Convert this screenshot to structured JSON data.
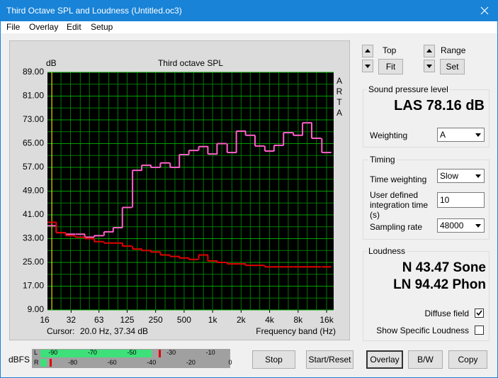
{
  "window": {
    "title": "Third Octave SPL and Loudness (Untitled.oc3)",
    "menu": [
      "File",
      "Overlay",
      "Edit",
      "Setup"
    ]
  },
  "chart_data": {
    "type": "line",
    "title": "Third octave SPL",
    "y_label": "dB",
    "x_label": "Frequency band (Hz)",
    "side_label": "ARTA",
    "cursor_label": "Cursor:",
    "cursor_value": "20.0 Hz, 37.34 dB",
    "x": [
      20,
      25,
      31.5,
      40,
      50,
      63,
      80,
      100,
      125,
      160,
      200,
      250,
      315,
      400,
      500,
      630,
      800,
      1000,
      1250,
      1600,
      2000,
      2500,
      3150,
      4000,
      5000,
      6300,
      8000,
      10000,
      12500,
      16000
    ],
    "series": [
      {
        "color": "#ff5fc8",
        "values": [
          37.34,
          35,
          34.5,
          34.5,
          33.5,
          34,
          35.3,
          36.7,
          43.5,
          56,
          57.7,
          57,
          58.5,
          57,
          61.3,
          62.7,
          64,
          61.5,
          65,
          62,
          69.2,
          67.8,
          64.2,
          62.5,
          64.4,
          68.7,
          67.8,
          72,
          66.8,
          62
        ]
      },
      {
        "color": "#e00000",
        "values": [
          38.5,
          35,
          34,
          33.5,
          33,
          32,
          31.5,
          31.5,
          30.5,
          29.5,
          29,
          28.5,
          27.5,
          27,
          26.5,
          26,
          27.5,
          25.5,
          25,
          24.5,
          24.5,
          24,
          24,
          23.5,
          23.5,
          23.5,
          23.5,
          23.5,
          23.5,
          23.5
        ]
      }
    ],
    "log_x": true,
    "xlim": [
      18,
      19000
    ],
    "ylim": [
      9,
      89
    ],
    "xticks": [
      16,
      32,
      63,
      125,
      250,
      500,
      {
        "value": 1000,
        "label": "1k"
      },
      {
        "value": 2000,
        "label": "2k"
      },
      {
        "value": 4000,
        "label": "4k"
      },
      {
        "value": 8000,
        "label": "8k"
      },
      {
        "value": 16000,
        "label": "16k"
      }
    ],
    "yticks": [
      {
        "value": 9,
        "label": "9.00"
      },
      {
        "value": 17,
        "label": "17.00"
      },
      {
        "value": 25,
        "label": "25.00"
      },
      {
        "value": 33,
        "label": "33.00"
      },
      {
        "value": 41,
        "label": "41.00"
      },
      {
        "value": 49,
        "label": "49.00"
      },
      {
        "value": 57,
        "label": "57.00"
      },
      {
        "value": 65,
        "label": "65.00"
      },
      {
        "value": 73,
        "label": "73.00"
      },
      {
        "value": 81,
        "label": "81.00"
      },
      {
        "value": 89,
        "label": "89.00"
      }
    ],
    "grid": true
  },
  "controls": {
    "top": {
      "label": "Top",
      "button": "Fit"
    },
    "range": {
      "label": "Range",
      "button": "Set"
    },
    "spl": {
      "title": "Sound pressure level",
      "reading": "LAS 78.16 dB",
      "weighting_label": "Weighting",
      "weighting": "A"
    },
    "timing": {
      "title": "Timing",
      "time_weighting_label": "Time weighting",
      "time_weighting": "Slow",
      "integration_label": "User defined integration time (s)",
      "integration": "10",
      "sampling_label": "Sampling rate",
      "sampling": "48000"
    },
    "loudness": {
      "title": "Loudness",
      "sone": "N 43.47 Sone",
      "phon": "LN 94.42 Phon",
      "diffuse_label": "Diffuse field",
      "diffuse_checked": true,
      "specific_label": "Show Specific Loudness",
      "specific_checked": false
    },
    "meter": {
      "label": "dBFS",
      "left": "L",
      "right": "R",
      "left_ticks": [
        -90,
        -70,
        -50,
        -30,
        -10
      ],
      "right_ticks": [
        -80,
        -60,
        -40,
        -20,
        0
      ]
    },
    "buttons": [
      "Stop",
      "Start/Reset",
      "Overlay",
      "B/W",
      "Copy"
    ]
  }
}
